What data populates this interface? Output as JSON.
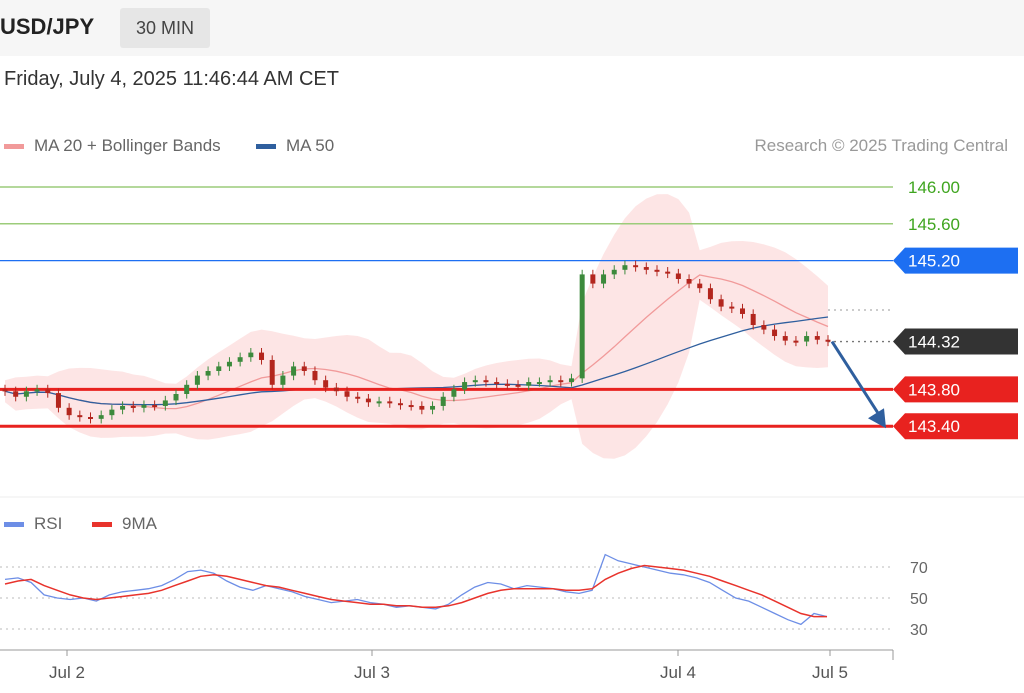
{
  "header": {
    "symbol": "USD/JPY",
    "timeframe": "30 MIN"
  },
  "timestamp": "Friday, July 4, 2025 11:46:44 AM CET",
  "legend": {
    "ma20_label": "MA 20 + Bollinger Bands",
    "ma50_label": "MA 50",
    "credit": "Research © 2025 Trading Central"
  },
  "rsi_legend": {
    "rsi_label": "RSI",
    "ma9_label": "9MA"
  },
  "colors": {
    "ma20": "#f19a9a",
    "ma50": "#2f5f9e",
    "band_fill": "#fde0e0",
    "resistance": "#9ccc7a",
    "resistance_text": "#3fa51f",
    "pivot": "#1d6ff2",
    "support": "#e8221f",
    "current": "#333333",
    "rsi": "#6d8ee6",
    "rsi_ma": "#e8332c",
    "arrow": "#2f5f9e"
  },
  "chart_data": {
    "type": "candlestick",
    "title": "USD/JPY",
    "timeframe": "30 MIN",
    "x_ticks": [
      "Jul 2",
      "Jul 3",
      "Jul 4",
      "Jul 5"
    ],
    "y_range": [
      142.8,
      146.2
    ],
    "levels": [
      {
        "value": 146.0,
        "label": "146.00",
        "kind": "resistance"
      },
      {
        "value": 145.6,
        "label": "145.60",
        "kind": "resistance"
      },
      {
        "value": 145.2,
        "label": "145.20",
        "kind": "pivot"
      },
      {
        "value": 144.32,
        "label": "144.32",
        "kind": "current"
      },
      {
        "value": 143.8,
        "label": "143.80",
        "kind": "support"
      },
      {
        "value": 143.4,
        "label": "143.40",
        "kind": "support"
      }
    ],
    "projection": {
      "from": 144.32,
      "to": 143.4
    },
    "close_series": [
      143.78,
      143.72,
      143.78,
      143.8,
      143.76,
      143.6,
      143.52,
      143.5,
      143.48,
      143.52,
      143.58,
      143.62,
      143.6,
      143.63,
      143.62,
      143.68,
      143.75,
      143.85,
      143.95,
      144.0,
      144.05,
      144.1,
      144.15,
      144.2,
      144.12,
      143.85,
      143.95,
      144.05,
      144.0,
      143.9,
      143.82,
      143.78,
      143.72,
      143.7,
      143.66,
      143.67,
      143.65,
      143.63,
      143.62,
      143.58,
      143.62,
      143.72,
      143.8,
      143.88,
      143.9,
      143.88,
      143.86,
      143.85,
      143.84,
      143.88,
      143.88,
      143.9,
      143.88,
      143.92,
      145.05,
      144.95,
      145.05,
      145.1,
      145.15,
      145.13,
      145.1,
      145.08,
      145.06,
      145.0,
      144.95,
      144.9,
      144.78,
      144.7,
      144.68,
      144.62,
      144.5,
      144.45,
      144.38,
      144.33,
      144.32,
      144.38,
      144.34,
      144.32
    ],
    "rsi": {
      "levels": [
        70,
        50,
        30
      ],
      "rsi_values": [
        62,
        63,
        60,
        52,
        50,
        49,
        50,
        48,
        52,
        54,
        55,
        56,
        58,
        62,
        67,
        68,
        66,
        61,
        57,
        55,
        58,
        56,
        54,
        51,
        49,
        47,
        48,
        49,
        47,
        46,
        44,
        45,
        44,
        43,
        46,
        52,
        57,
        60,
        59,
        56,
        58,
        57,
        56,
        54,
        53,
        55,
        78,
        74,
        72,
        70,
        68,
        66,
        65,
        63,
        60,
        55,
        50,
        48,
        44,
        40,
        36,
        33,
        40,
        38
      ],
      "ma_values": [
        59,
        61,
        62,
        58,
        55,
        52,
        50,
        49,
        50,
        51,
        52,
        53,
        55,
        58,
        61,
        64,
        65,
        64,
        62,
        60,
        58,
        57,
        55,
        53,
        51,
        49,
        48,
        47,
        46,
        46,
        45,
        45,
        44,
        44,
        45,
        47,
        50,
        53,
        55,
        56,
        56,
        56,
        56,
        55,
        55,
        56,
        62,
        66,
        69,
        71,
        70,
        69,
        68,
        66,
        64,
        61,
        58,
        55,
        52,
        48,
        44,
        40,
        38,
        38
      ]
    }
  }
}
